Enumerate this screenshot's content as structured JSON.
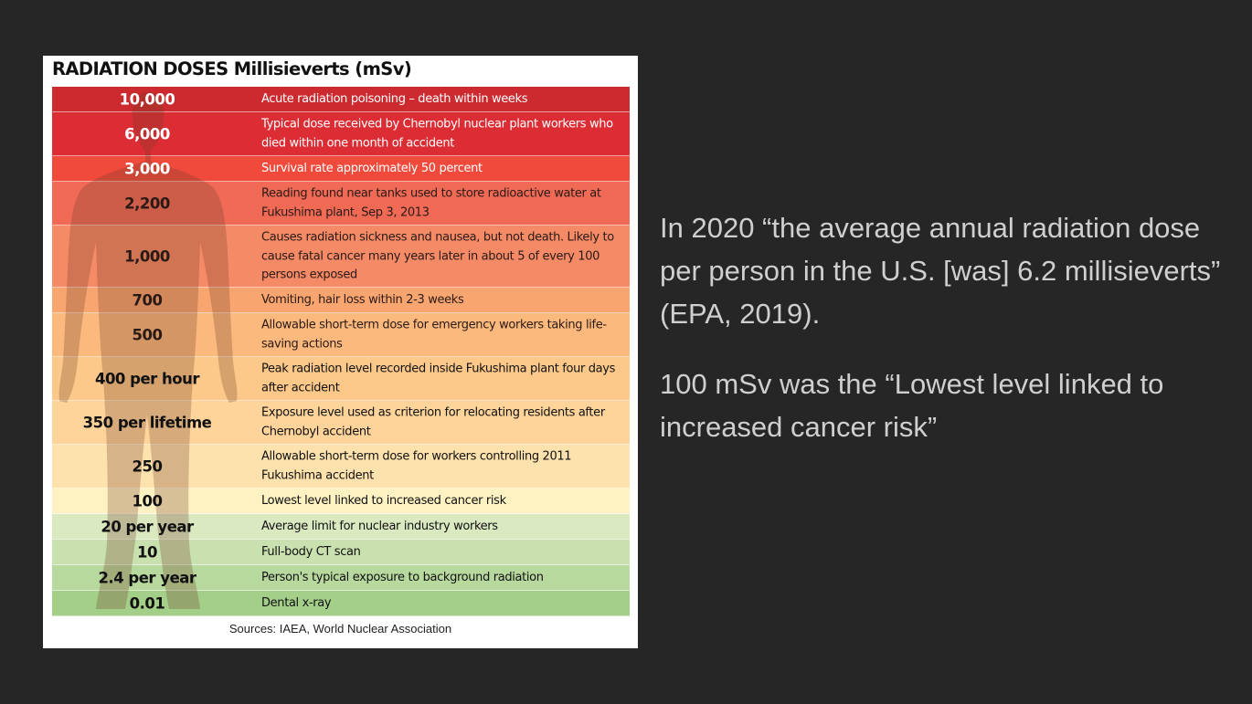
{
  "card": {
    "title": "RADIATION DOSES Millisieverts (mSv)",
    "sources": "Sources: IAEA, World Nuclear Association"
  },
  "rows": [
    {
      "dose": "10,000",
      "desc": "Acute radiation poisoning – death within weeks",
      "color": "#cc2a2f",
      "text_color": "#ffffff"
    },
    {
      "dose": "6,000",
      "desc": "Typical dose received by Chernobyl nuclear plant workers who died within one month of accident",
      "color": "#dd2d34",
      "text_color": "#ffffff"
    },
    {
      "dose": "3,000",
      "desc": "Survival rate approximately 50 percent",
      "color": "#ef4a3c",
      "text_color": "#ffffff"
    },
    {
      "dose": "2,200",
      "desc": "Reading found near tanks used to store radioactive water at Fukushima plant, Sep 3, 2013",
      "color": "#f06a55",
      "text_color": "#2a1a16"
    },
    {
      "dose": "1,000",
      "desc": "Causes radiation sickness and nausea, but not death. Likely to cause fatal cancer many years later in about 5 of every 100 persons exposed",
      "color": "#f58a66",
      "text_color": "#2a1a16"
    },
    {
      "dose": "700",
      "desc": "Vomiting, hair loss within 2-3 weeks",
      "color": "#f9a56f",
      "text_color": "#2a1a16"
    },
    {
      "dose": "500",
      "desc": "Allowable short-term dose for emergency workers taking life-saving actions",
      "color": "#fbb97d",
      "text_color": "#2a1a16"
    },
    {
      "dose": "400 per hour",
      "desc": "Peak radiation level recorded inside Fukushima plant four days after accident",
      "color": "#fdc98a",
      "text_color": "#111111"
    },
    {
      "dose": "350 per lifetime",
      "desc": "Exposure level used as criterion for relocating residents after Chernobyl accident",
      "color": "#fed49a",
      "text_color": "#111111"
    },
    {
      "dose": "250",
      "desc": "Allowable short-term dose for workers controlling 2011 Fukushima accident",
      "color": "#fee2ad",
      "text_color": "#111111"
    },
    {
      "dose": "100",
      "desc": "Lowest level linked to increased cancer risk",
      "color": "#fff2c2",
      "text_color": "#111111"
    },
    {
      "dose": "20 per year",
      "desc": "Average limit for nuclear industry workers",
      "color": "#dbe9c1",
      "text_color": "#111111"
    },
    {
      "dose": "10",
      "desc": "Full-body CT scan",
      "color": "#c9e1ae",
      "text_color": "#111111"
    },
    {
      "dose": "2.4 per year",
      "desc": "Person's typical exposure to background radiation",
      "color": "#b8d99d",
      "text_color": "#111111"
    },
    {
      "dose": "0.01",
      "desc": "Dental x-ray",
      "color": "#a3cf88",
      "text_color": "#111111"
    }
  ],
  "notes": {
    "note1": "In 2020 “the average annual radiation dose per person in the U.S. [was]  6.2 millisieverts” (EPA, 2019).",
    "note2": "100 mSv was the “Lowest level linked to increased cancer risk”"
  }
}
